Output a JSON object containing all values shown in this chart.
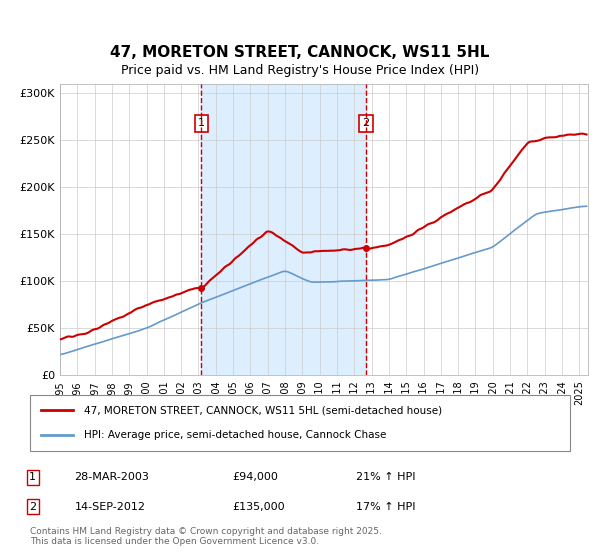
{
  "title": "47, MORETON STREET, CANNOCK, WS11 5HL",
  "subtitle": "Price paid vs. HM Land Registry's House Price Index (HPI)",
  "background_color": "#ffffff",
  "plot_bg_color": "#ffffff",
  "grid_color": "#cccccc",
  "sale1_date": "28-MAR-2003",
  "sale1_price": 94000,
  "sale1_label": "1",
  "sale1_hpi": "21% ↑ HPI",
  "sale2_date": "14-SEP-2012",
  "sale2_price": 135000,
  "sale2_label": "2",
  "sale2_hpi": "17% ↑ HPI",
  "legend_line1": "47, MORETON STREET, CANNOCK, WS11 5HL (semi-detached house)",
  "legend_line2": "HPI: Average price, semi-detached house, Cannock Chase",
  "footer": "Contains HM Land Registry data © Crown copyright and database right 2025.\nThis data is licensed under the Open Government Licence v3.0.",
  "ylim": [
    0,
    310000
  ],
  "yticks": [
    0,
    50000,
    100000,
    150000,
    200000,
    250000,
    300000
  ],
  "ytick_labels": [
    "£0",
    "£50K",
    "£100K",
    "£150K",
    "£200K",
    "£250K",
    "£300K"
  ],
  "red_color": "#cc0000",
  "blue_color": "#6699cc",
  "shade_color": "#ddeeff",
  "vline_color": "#cc0000"
}
